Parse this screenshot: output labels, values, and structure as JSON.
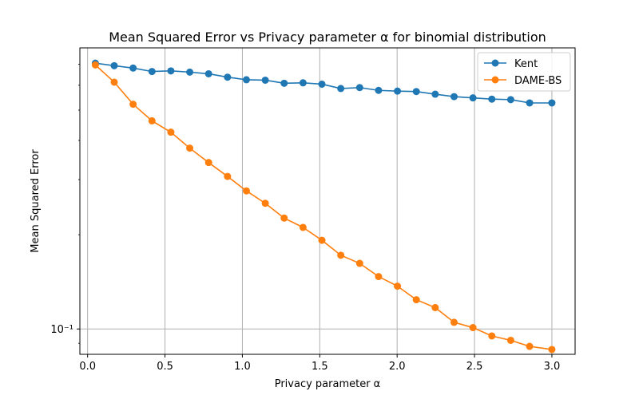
{
  "chart_data": {
    "type": "line",
    "title": "Mean Squared Error vs Privacy parameter α for binomial distribution",
    "xlabel": "Privacy parameter α",
    "ylabel": "Mean Squared Error",
    "xlim": [
      -0.05,
      3.15
    ],
    "ylim": [
      0.083,
      0.79
    ],
    "yscale": "log",
    "xticks": [
      0.0,
      0.5,
      1.0,
      1.5,
      2.0,
      2.5,
      3.0
    ],
    "xtick_labels": [
      "0.0",
      "0.5",
      "1.0",
      "1.5",
      "2.0",
      "2.5",
      "3.0"
    ],
    "yticks": [
      0.1
    ],
    "ytick_labels": [
      "10⁻¹"
    ],
    "grid": "vertical major lines and horizontal line at 10⁻¹",
    "legend_position": "top-right",
    "x": [
      0.05,
      0.172,
      0.294,
      0.416,
      0.538,
      0.66,
      0.782,
      0.904,
      1.026,
      1.148,
      1.27,
      1.392,
      1.514,
      1.636,
      1.758,
      1.88,
      2.002,
      2.124,
      2.246,
      2.368,
      2.49,
      2.612,
      2.734,
      2.856,
      3.0
    ],
    "series": [
      {
        "name": "Kent",
        "color": "#1f77b4",
        "values": [
          0.706,
          0.693,
          0.681,
          0.664,
          0.667,
          0.661,
          0.653,
          0.637,
          0.625,
          0.623,
          0.609,
          0.611,
          0.605,
          0.586,
          0.59,
          0.578,
          0.575,
          0.573,
          0.562,
          0.552,
          0.547,
          0.542,
          0.54,
          0.527,
          0.527
        ]
      },
      {
        "name": "DAME-BS",
        "color": "#ff7f0e",
        "values": [
          0.697,
          0.614,
          0.522,
          0.462,
          0.425,
          0.378,
          0.34,
          0.307,
          0.276,
          0.252,
          0.226,
          0.211,
          0.192,
          0.172,
          0.162,
          0.147,
          0.137,
          0.124,
          0.117,
          0.105,
          0.101,
          0.095,
          0.092,
          0.088,
          0.086
        ]
      }
    ]
  }
}
